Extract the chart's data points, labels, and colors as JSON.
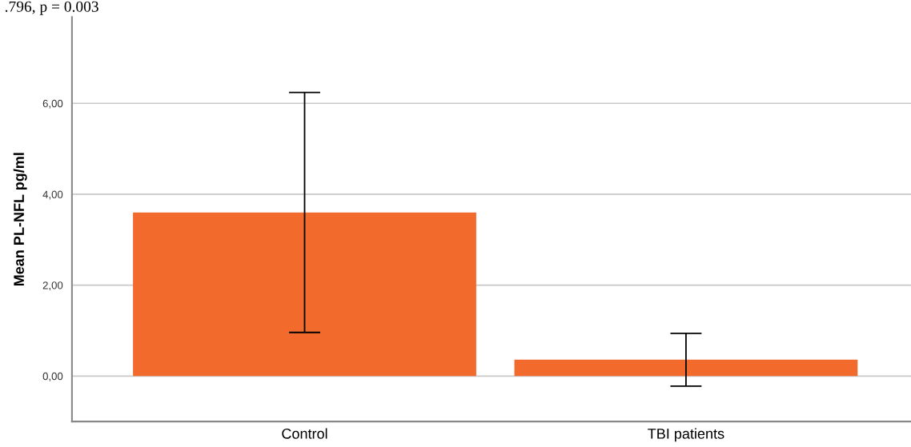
{
  "chart_data": {
    "type": "bar",
    "title": ".796, p = 0.003",
    "categories": [
      "Control",
      "TBI patients"
    ],
    "values": [
      3.6,
      0.36
    ],
    "errors": [
      2.64,
      0.58
    ],
    "color": "#f26a2c",
    "ylabel": "Mean PL-NFL pg/ml",
    "ylim": [
      -1.0,
      7.9
    ],
    "yticks": [
      {
        "value": 0,
        "label": "0,00"
      },
      {
        "value": 2,
        "label": "2,00"
      },
      {
        "value": 4,
        "label": "4,00"
      },
      {
        "value": 6,
        "label": "6,00"
      }
    ],
    "grid": "y",
    "legend": false
  }
}
